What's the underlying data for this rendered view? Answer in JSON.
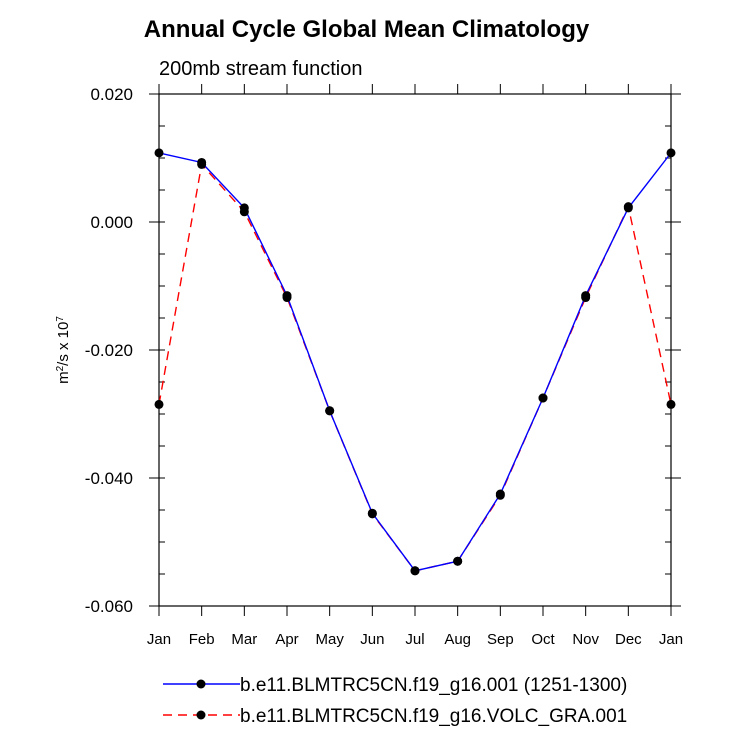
{
  "chart_data": {
    "type": "line",
    "title": "Annual Cycle Global Mean Climatology",
    "subtitle": "200mb stream function",
    "ylabel": {
      "base": "m",
      "sup1": "2",
      "mid": "/s x 10",
      "sup2": "7"
    },
    "xlabel": "",
    "categories": [
      "Jan",
      "Feb",
      "Mar",
      "Apr",
      "May",
      "Jun",
      "Jul",
      "Aug",
      "Sep",
      "Oct",
      "Nov",
      "Dec",
      "Jan"
    ],
    "ylim": [
      -0.06,
      0.02
    ],
    "yticks": [
      0.02,
      0.0,
      -0.02,
      -0.04,
      -0.06
    ],
    "ytick_labels": [
      "0.020",
      "0.000",
      "-0.020",
      "-0.040",
      "-0.060"
    ],
    "y_minor_step": 0.005,
    "grid": false,
    "legend_position": "bottom",
    "series": [
      {
        "name": "b.e11.BLMTRC5CN.f19_g16.001 (1251-1300)",
        "color": "#0000ff",
        "dash": "solid",
        "values": [
          0.0108,
          0.0093,
          0.0022,
          -0.0115,
          -0.0295,
          -0.0455,
          -0.0545,
          -0.053,
          -0.0425,
          -0.0275,
          -0.0115,
          0.0022,
          0.0108
        ]
      },
      {
        "name": "b.e11.BLMTRC5CN.f19_g16.VOLC_GRA.001",
        "color": "#ff0000",
        "dash": "dashed",
        "values": [
          -0.0285,
          0.009,
          0.0016,
          -0.0118,
          -0.0295,
          -0.0456,
          -0.0545,
          -0.053,
          -0.0427,
          -0.0275,
          -0.0118,
          0.0024,
          -0.0285
        ]
      }
    ]
  }
}
